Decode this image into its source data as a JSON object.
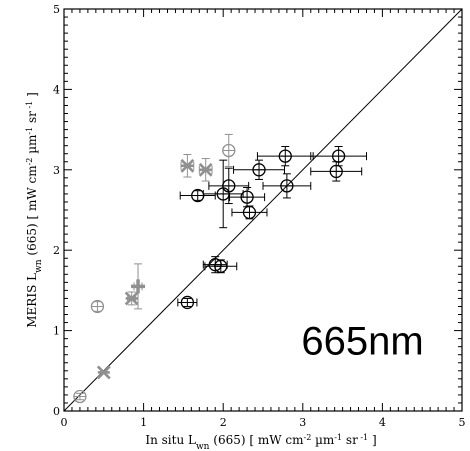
{
  "chart_data": {
    "type": "scatter",
    "xlabel_parts": [
      "In situ L",
      "wn",
      " (665)  [ mW cm",
      "-2",
      " µm",
      "-1",
      " sr",
      " -1",
      " ]"
    ],
    "ylabel_parts": [
      "MERIS  L",
      "wn",
      " (665)  [ mW cm",
      "-2",
      " µm",
      "-1",
      " sr",
      " -1",
      " ]"
    ],
    "annotation": "665nm",
    "xlim": [
      0,
      5
    ],
    "ylim": [
      0,
      5
    ],
    "x_ticks": [
      "0",
      "1",
      "2",
      "3",
      "4",
      "5"
    ],
    "y_ticks": [
      "0",
      "1",
      "2",
      "3",
      "4",
      "5"
    ],
    "reference_line": {
      "type": "1:1",
      "from": [
        0,
        0
      ],
      "to": [
        5,
        5
      ]
    },
    "colors": {
      "primary": "#000000",
      "secondary": "#909090"
    },
    "series": [
      {
        "marker": "circle",
        "color": "#000000",
        "points": [
          {
            "x": 1.55,
            "y": 1.35,
            "xerr": 0.12,
            "yerr": 0.05
          },
          {
            "x": 1.9,
            "y": 1.82,
            "xerr": 0.15,
            "yerr": 0.1
          },
          {
            "x": 1.97,
            "y": 1.8,
            "xerr": 0.2,
            "yerr": 0.08
          },
          {
            "x": 1.68,
            "y": 2.68,
            "xerr": 0.22,
            "yerr": 0.06
          },
          {
            "x": 2.0,
            "y": 2.7,
            "xerr": 0.25,
            "yerr": 0.42
          },
          {
            "x": 2.07,
            "y": 2.8,
            "xerr": 0.25,
            "yerr": 0.22
          },
          {
            "x": 2.3,
            "y": 2.66,
            "xerr": 0.22,
            "yerr": 0.12
          },
          {
            "x": 2.33,
            "y": 2.47,
            "xerr": 0.22,
            "yerr": 0.08
          },
          {
            "x": 2.45,
            "y": 3.0,
            "xerr": 0.32,
            "yerr": 0.12
          },
          {
            "x": 2.78,
            "y": 3.17,
            "xerr": 0.35,
            "yerr": 0.12
          },
          {
            "x": 2.8,
            "y": 2.8,
            "xerr": 0.3,
            "yerr": 0.15
          },
          {
            "x": 3.42,
            "y": 2.98,
            "xerr": 0.32,
            "yerr": 0.12
          },
          {
            "x": 3.45,
            "y": 3.17,
            "xerr": 0.35,
            "yerr": 0.12
          }
        ]
      },
      {
        "marker": "circle",
        "color": "#909090",
        "points": [
          {
            "x": 0.2,
            "y": 0.18,
            "xerr": 0.0,
            "yerr": 0.04
          },
          {
            "x": 0.42,
            "y": 1.3,
            "xerr": 0.0,
            "yerr": 0.06
          },
          {
            "x": 2.07,
            "y": 3.24,
            "xerr": 0.0,
            "yerr": 0.2
          }
        ]
      },
      {
        "marker": "asterisk",
        "color": "#909090",
        "points": [
          {
            "x": 0.5,
            "y": 0.48,
            "xerr": 0.0,
            "yerr": 0.0
          },
          {
            "x": 0.85,
            "y": 1.4,
            "xerr": 0.05,
            "yerr": 0.08
          },
          {
            "x": 1.55,
            "y": 3.05,
            "xerr": 0.08,
            "yerr": 0.14
          },
          {
            "x": 1.78,
            "y": 3.0,
            "xerr": 0.08,
            "yerr": 0.14
          }
        ]
      },
      {
        "marker": "plus",
        "color": "#909090",
        "points": [
          {
            "x": 0.93,
            "y": 1.55,
            "xerr": 0.05,
            "yerr": 0.28
          }
        ]
      }
    ]
  }
}
